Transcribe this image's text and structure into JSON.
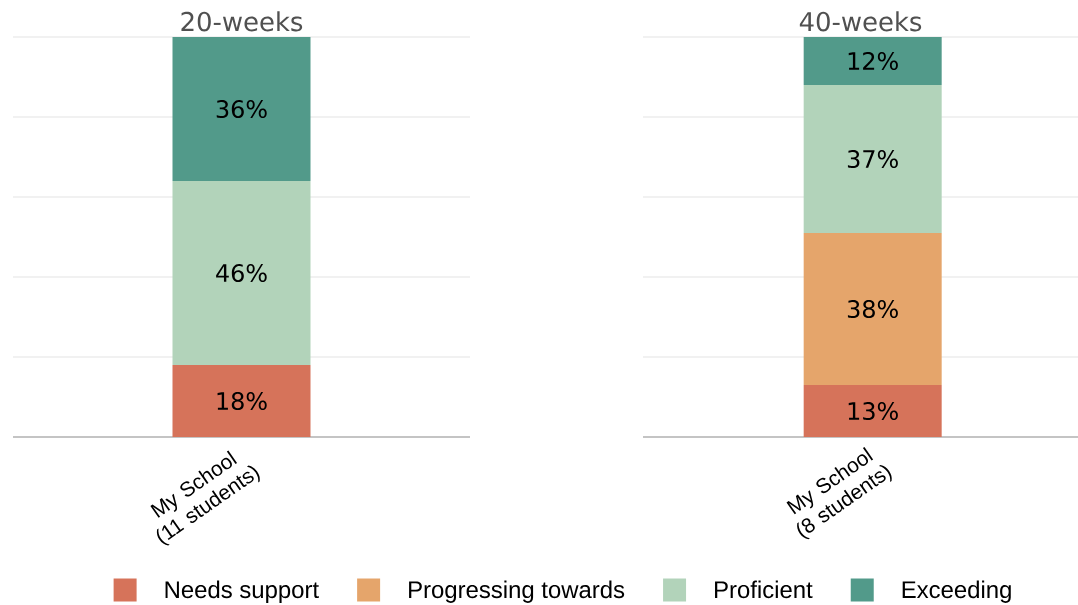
{
  "chart_data": [
    {
      "type": "bar",
      "title": "20-weeks",
      "categories": [
        "My School (11 students)"
      ],
      "stacked": true,
      "series": [
        {
          "name": "Needs support",
          "color": "#d6735a",
          "values": [
            18
          ],
          "value_labels": [
            "18%"
          ]
        },
        {
          "name": "Progressing towards",
          "color": "#e5a56b",
          "values": [
            null
          ],
          "value_labels": [
            null
          ]
        },
        {
          "name": "Proficient",
          "color": "#b2d3ba",
          "values": [
            46
          ],
          "value_labels": [
            "46%"
          ]
        },
        {
          "name": "Exceeding",
          "color": "#529a8a",
          "values": [
            36
          ],
          "value_labels": [
            "36%"
          ]
        }
      ],
      "ylim": [
        0,
        100
      ],
      "yticks": [
        {
          "value": 0,
          "label": null
        },
        {
          "value": 20,
          "label": null
        },
        {
          "value": 40,
          "label": null
        },
        {
          "value": 60,
          "label": null
        },
        {
          "value": 80,
          "label": null
        },
        {
          "value": 100,
          "label": null
        }
      ],
      "grid": "y",
      "tick_labels": "x",
      "legend": "bottom"
    },
    {
      "type": "bar",
      "title": "40-weeks",
      "categories": [
        "My School (8 students)"
      ],
      "stacked": true,
      "series": [
        {
          "color": "#d6735a",
          "values": [
            13
          ],
          "value_labels": [
            "13%"
          ]
        },
        {
          "color": "#e5a56b",
          "values": [
            38
          ],
          "value_labels": [
            "38%"
          ]
        },
        {
          "color": "#b2d3ba",
          "values": [
            37
          ],
          "value_labels": [
            "37%"
          ]
        },
        {
          "color": "#529a8a",
          "values": [
            12
          ],
          "value_labels": [
            "12%"
          ]
        }
      ],
      "ylim": [
        0,
        100
      ],
      "yticks": [
        {
          "value": 0,
          "label": null
        },
        {
          "value": 20,
          "label": null
        },
        {
          "value": 40,
          "label": null
        },
        {
          "value": 60,
          "label": null
        },
        {
          "value": 80,
          "label": null
        },
        {
          "value": 100,
          "label": null
        }
      ],
      "grid": "y",
      "tick_labels": "x"
    }
  ]
}
